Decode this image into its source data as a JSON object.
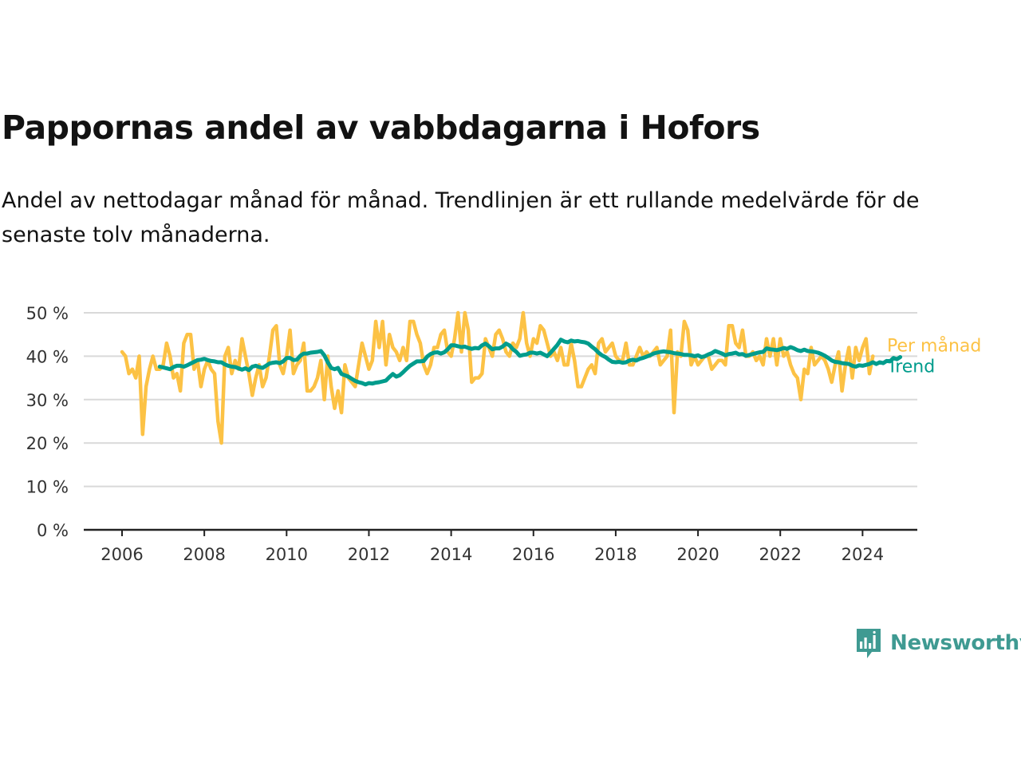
{
  "title": "Pappornas andel av vabbdagarna i Hofors",
  "subtitle": "Andel av nettodagar månad för månad. Trendlinjen är ett rullande medelvärde för de senaste tolv månaderna.",
  "brand": {
    "name": "Newsworthy",
    "color": "#3f9a92"
  },
  "chart_data": {
    "type": "line",
    "title": "Pappornas andel av vabbdagarna i Hofors",
    "subtitle": "Andel av nettodagar månad för månad. Trendlinjen är ett rullande medelvärde för de senaste tolv månaderna.",
    "x_start": "2006-01",
    "x_end": "2024-05",
    "ylim": [
      0,
      50
    ],
    "yticks": [
      0,
      10,
      20,
      30,
      40,
      50
    ],
    "ytick_labels": [
      "0 %",
      "10 %",
      "20 %",
      "30 %",
      "40 %",
      "50 %"
    ],
    "xticks": [
      2006,
      2008,
      2010,
      2012,
      2014,
      2016,
      2018,
      2020,
      2022,
      2024
    ],
    "xtick_labels": [
      "2006",
      "2008",
      "2010",
      "2012",
      "2014",
      "2016",
      "2018",
      "2020",
      "2022",
      "2024"
    ],
    "grid": true,
    "legend_placement": "right end of lines",
    "series": [
      {
        "name": "Per månad",
        "color": "#fcc245",
        "values": [
          41,
          40,
          36,
          37,
          35,
          40,
          22,
          33,
          37,
          40,
          37,
          37,
          38,
          43,
          40,
          35,
          36,
          32,
          43,
          45,
          45,
          37,
          39,
          33,
          37,
          39,
          37,
          36,
          25,
          20,
          40,
          42,
          36,
          39,
          37,
          44,
          40,
          36,
          31,
          35,
          38,
          33,
          35,
          40,
          46,
          47,
          38,
          36,
          40,
          46,
          36,
          38,
          39,
          43,
          32,
          32,
          33,
          35,
          39,
          30,
          40,
          33,
          28,
          32,
          27,
          38,
          35,
          34,
          33,
          38,
          43,
          40,
          37,
          39,
          48,
          42,
          48,
          38,
          45,
          42,
          41,
          39,
          42,
          39,
          48,
          48,
          45,
          43,
          38,
          36,
          38,
          42,
          42,
          45,
          46,
          41,
          40,
          44,
          50,
          41,
          50,
          46,
          34,
          35,
          35,
          36,
          44,
          42,
          40,
          45,
          46,
          44,
          41,
          40,
          43,
          42,
          44,
          50,
          43,
          40,
          44,
          43,
          47,
          46,
          43,
          40,
          41,
          39,
          42,
          38,
          38,
          43,
          39,
          33,
          33,
          35,
          37,
          38,
          36,
          43,
          44,
          41,
          42,
          43,
          40,
          39,
          39,
          43,
          38,
          38,
          40,
          42,
          40,
          41,
          40,
          41,
          42,
          38,
          39,
          40,
          46,
          27,
          41,
          40,
          48,
          46,
          38,
          40,
          38,
          39,
          40,
          40,
          37,
          38,
          39,
          39,
          38,
          47,
          47,
          43,
          42,
          46,
          40,
          40,
          41,
          39,
          40,
          38,
          44,
          40,
          44,
          38,
          44,
          40,
          41,
          38,
          36,
          35,
          30,
          37,
          36,
          42,
          38,
          39,
          40,
          39,
          37,
          34,
          38,
          41,
          32,
          38,
          42,
          35,
          42,
          39,
          42,
          44,
          36,
          40
        ]
      },
      {
        "name": "Trend",
        "color": "#009c8c",
        "start": "2006-12",
        "values": [
          37.6,
          37.4,
          37.2,
          37.0,
          37.5,
          37.8,
          37.8,
          37.6,
          37.9,
          38.3,
          38.7,
          39.1,
          39.2,
          39.4,
          39.1,
          38.9,
          38.8,
          38.6,
          38.6,
          38.1,
          37.8,
          37.6,
          37.5,
          37.2,
          36.9,
          37.2,
          36.8,
          37.6,
          37.8,
          37.5,
          37.3,
          37.8,
          38.3,
          38.5,
          38.6,
          38.4,
          38.8,
          39.6,
          39.6,
          39.1,
          39.2,
          40.1,
          40.6,
          40.6,
          40.8,
          40.9,
          41.0,
          41.2,
          40.2,
          38.6,
          37.3,
          37.0,
          37.3,
          35.9,
          35.6,
          35.3,
          34.8,
          34.3,
          34.0,
          33.8,
          33.5,
          33.8,
          33.7,
          33.9,
          34.0,
          34.2,
          34.4,
          35.2,
          35.9,
          35.3,
          35.6,
          36.3,
          37.1,
          37.8,
          38.3,
          38.8,
          38.8,
          38.9,
          39.9,
          40.5,
          40.8,
          40.9,
          40.6,
          40.9,
          41.6,
          42.5,
          42.5,
          42.3,
          42.1,
          42.2,
          41.9,
          41.7,
          41.9,
          41.8,
          42.5,
          42.9,
          42.3,
          41.6,
          41.8,
          41.8,
          42.2,
          42.9,
          42.5,
          41.6,
          41.0,
          40.1,
          40.3,
          40.4,
          40.8,
          40.8,
          40.6,
          40.8,
          40.4,
          40.0,
          40.8,
          41.7,
          42.6,
          43.8,
          43.4,
          43.2,
          43.6,
          43.4,
          43.5,
          43.3,
          43.2,
          42.9,
          42.2,
          41.6,
          40.8,
          40.2,
          39.8,
          39.2,
          38.7,
          38.6,
          38.7,
          38.5,
          38.6,
          39.0,
          39.2,
          39.0,
          39.4,
          39.6,
          39.9,
          40.2,
          40.6,
          40.8,
          41.0,
          41.1,
          41.0,
          40.9,
          40.7,
          40.6,
          40.5,
          40.3,
          40.3,
          40.2,
          40.0,
          40.2,
          39.8,
          40.0,
          40.4,
          40.7,
          41.2,
          40.9,
          40.6,
          40.2,
          40.5,
          40.6,
          40.8,
          40.4,
          40.5,
          40.1,
          40.3,
          40.5,
          40.7,
          40.9,
          41.0,
          41.8,
          41.6,
          41.5,
          41.4,
          41.6,
          41.9,
          41.7,
          42.1,
          41.8,
          41.4,
          41.2,
          41.5,
          41.2,
          41.1,
          41.0,
          40.8,
          40.5,
          40.1,
          39.6,
          39.0,
          38.7,
          38.6,
          38.4,
          38.3,
          38.2,
          37.8,
          37.6,
          37.9,
          37.8,
          38.0,
          38.2,
          38.6,
          38.2,
          38.6,
          38.4,
          38.9,
          38.8,
          39.6,
          39.3,
          39.8
        ]
      }
    ]
  }
}
